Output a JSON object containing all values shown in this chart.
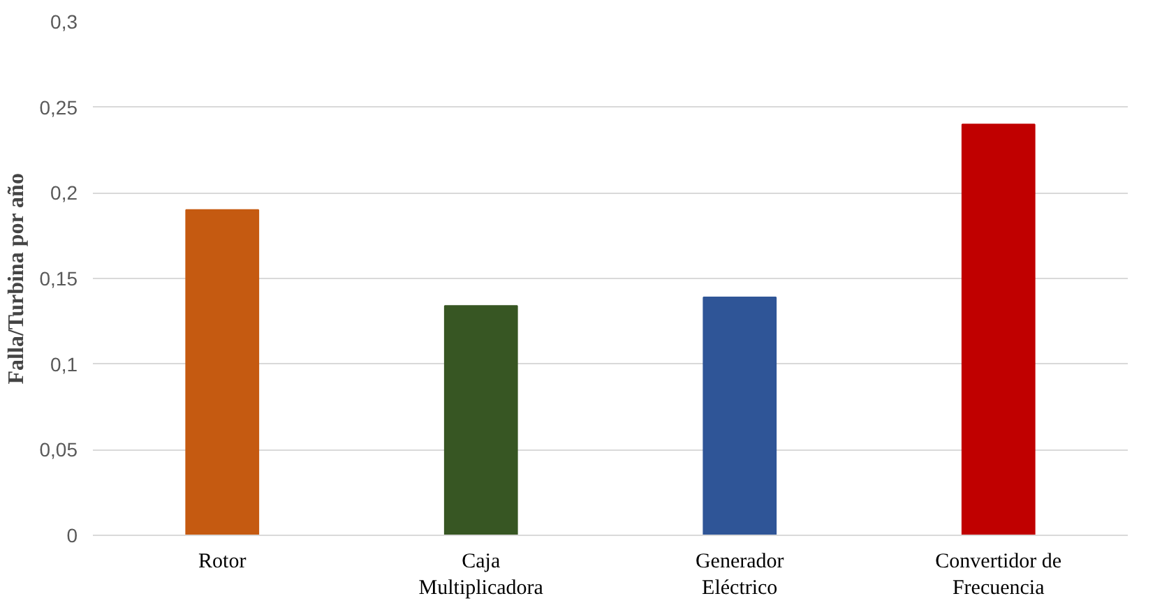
{
  "chart_data": {
    "type": "bar",
    "ylabel": "Falla/Turbina por año",
    "categories": [
      "Rotor",
      "Caja\nMultiplicadora",
      "Generador\nEléctrico",
      "Convertidor de\nFrecuencia"
    ],
    "values": [
      0.19,
      0.134,
      0.139,
      0.24
    ],
    "colors": [
      "#c55a11",
      "#375623",
      "#2f5597",
      "#c00000"
    ],
    "ylim": [
      0,
      0.3
    ],
    "yticks": [
      {
        "value": 0,
        "label": "0"
      },
      {
        "value": 0.05,
        "label": "0,05"
      },
      {
        "value": 0.1,
        "label": "0,1"
      },
      {
        "value": 0.15,
        "label": "0,15"
      },
      {
        "value": 0.2,
        "label": "0,2"
      },
      {
        "value": 0.25,
        "label": "0,25"
      },
      {
        "value": 0.3,
        "label": "0,3"
      }
    ],
    "grid": "y"
  }
}
